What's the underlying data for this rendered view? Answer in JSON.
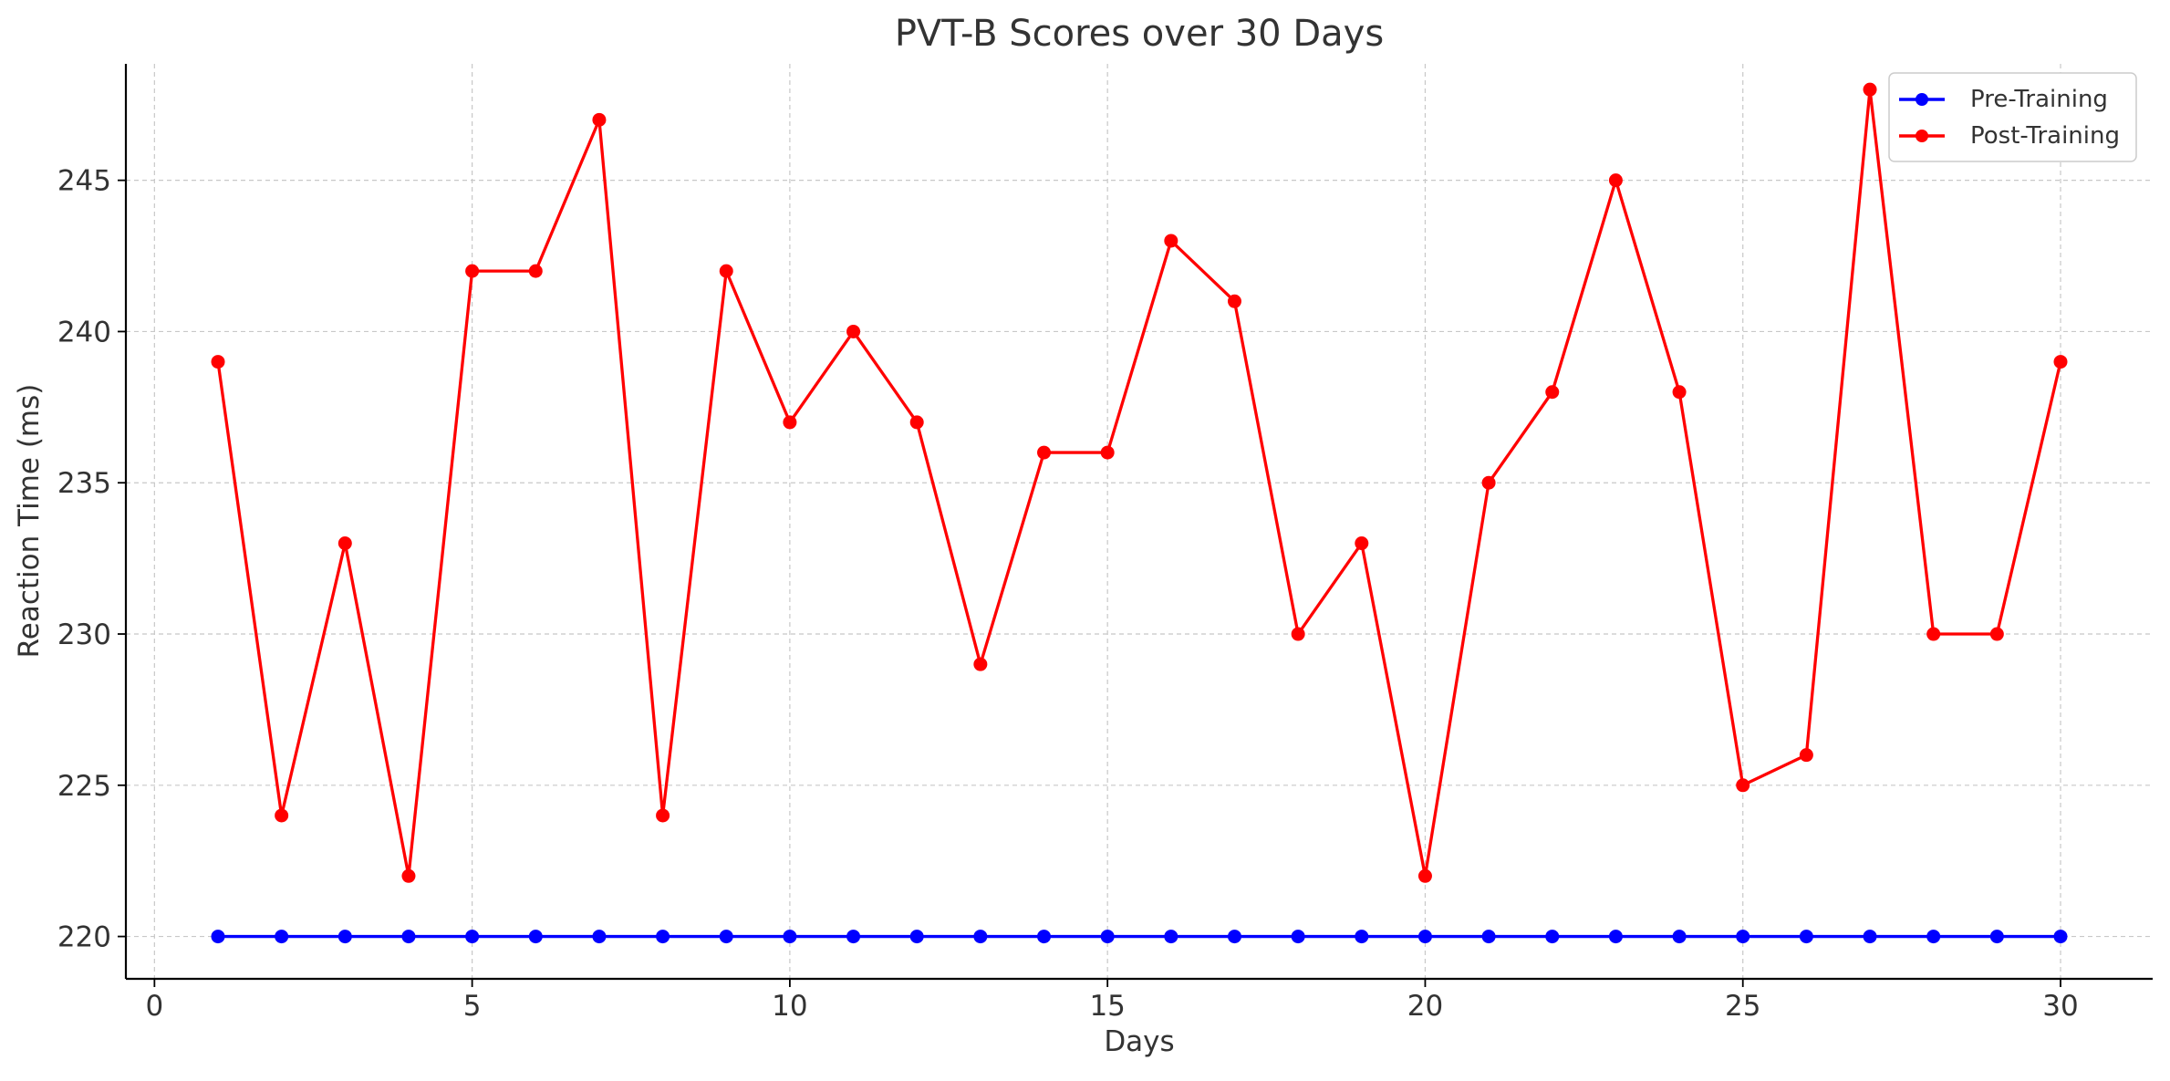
{
  "chart_data": {
    "type": "line",
    "title": "PVT-B Scores over 30 Days",
    "xlabel": "Days",
    "ylabel": "Reaction Time (ms)",
    "xlim": [
      -0.45,
      31.45
    ],
    "ylim": [
      218.6,
      248.85
    ],
    "xticks": [
      0,
      5,
      10,
      15,
      20,
      25,
      30
    ],
    "yticks": [
      220,
      225,
      230,
      235,
      240,
      245
    ],
    "grid": true,
    "legend_position": "top-right",
    "x": [
      1,
      2,
      3,
      4,
      5,
      6,
      7,
      8,
      9,
      10,
      11,
      12,
      13,
      14,
      15,
      16,
      17,
      18,
      19,
      20,
      21,
      22,
      23,
      24,
      25,
      26,
      27,
      28,
      29,
      30
    ],
    "series": [
      {
        "name": "Pre-Training",
        "color": "#0000ff",
        "values": [
          220,
          220,
          220,
          220,
          220,
          220,
          220,
          220,
          220,
          220,
          220,
          220,
          220,
          220,
          220,
          220,
          220,
          220,
          220,
          220,
          220,
          220,
          220,
          220,
          220,
          220,
          220,
          220,
          220,
          220
        ]
      },
      {
        "name": "Post-Training",
        "color": "#ff0000",
        "values": [
          239,
          224,
          233,
          222,
          242,
          242,
          247,
          224,
          242,
          237,
          240,
          237,
          229,
          236,
          236,
          243,
          241,
          230,
          233,
          222,
          235,
          238,
          245,
          238,
          225,
          226,
          248,
          230,
          230,
          239
        ]
      }
    ]
  }
}
